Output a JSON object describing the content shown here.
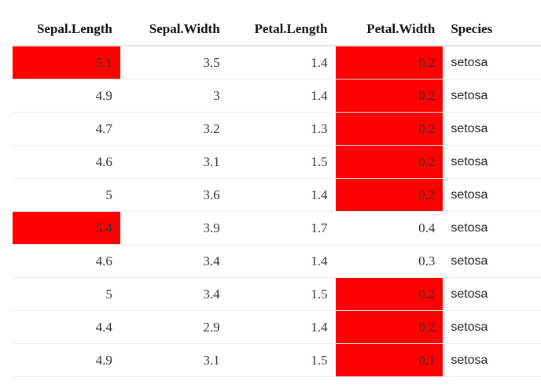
{
  "table": {
    "header": [
      "Sepal.Length",
      "Sepal.Width",
      "Petal.Length",
      "Petal.Width",
      "Species"
    ],
    "rows": [
      [
        "5.1",
        "3.5",
        "1.4",
        "0.2",
        "setosa"
      ],
      [
        "4.9",
        "3",
        "1.4",
        "0.2",
        "setosa"
      ],
      [
        "4.7",
        "3.2",
        "1.3",
        "0.2",
        "setosa"
      ],
      [
        "4.6",
        "3.1",
        "1.5",
        "0.2",
        "setosa"
      ],
      [
        "5",
        "3.6",
        "1.4",
        "0.2",
        "setosa"
      ],
      [
        "5.4",
        "3.9",
        "1.7",
        "0.4",
        "setosa"
      ],
      [
        "4.6",
        "3.4",
        "1.4",
        "0.3",
        "setosa"
      ],
      [
        "5",
        "3.4",
        "1.5",
        "0.2",
        "setosa"
      ],
      [
        "4.4",
        "2.9",
        "1.4",
        "0.2",
        "setosa"
      ],
      [
        "4.9",
        "3.1",
        "1.5",
        "0.1",
        "setosa"
      ]
    ],
    "highlight_color": "#ff0000",
    "highlighted_cells": [
      [
        0,
        0
      ],
      [
        0,
        3
      ],
      [
        1,
        3
      ],
      [
        2,
        3
      ],
      [
        3,
        3
      ],
      [
        4,
        3
      ],
      [
        5,
        0
      ],
      [
        7,
        3
      ],
      [
        8,
        3
      ],
      [
        9,
        3
      ]
    ]
  }
}
